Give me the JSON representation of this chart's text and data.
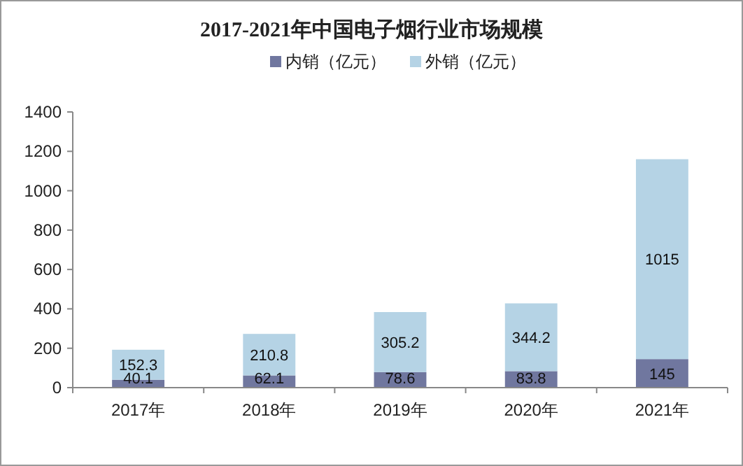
{
  "chart_data": {
    "type": "bar",
    "title": "2017-2021年中国电子烟行业市场规模",
    "categories": [
      "2017年",
      "2018年",
      "2019年",
      "2020年",
      "2021年"
    ],
    "stacked": true,
    "data_labels": true,
    "legend": "top",
    "ylim": [
      0,
      1400
    ],
    "yticks": [
      0,
      200,
      400,
      600,
      800,
      1000,
      1200,
      1400
    ],
    "series": [
      {
        "name": "内销（亿元）",
        "color": "#70779f",
        "values": [
          40.1,
          62.1,
          78.6,
          83.8,
          145
        ]
      },
      {
        "name": "外销（亿元）",
        "color": "#b5d3e5",
        "values": [
          152.3,
          210.8,
          305.2,
          344.2,
          1015
        ]
      }
    ]
  }
}
